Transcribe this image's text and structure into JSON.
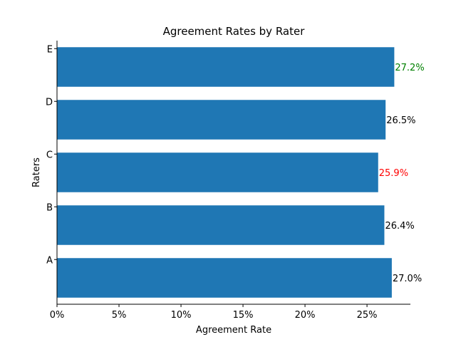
{
  "chart_data": {
    "type": "bar",
    "orientation": "horizontal",
    "title": "Agreement Rates by Rater",
    "xlabel": "Agreement Rate",
    "ylabel": "Raters",
    "categories": [
      "A",
      "B",
      "C",
      "D",
      "E"
    ],
    "values": [
      0.27,
      0.264,
      0.259,
      0.265,
      0.272
    ],
    "data_labels": [
      "27.0%",
      "26.4%",
      "25.9%",
      "26.5%",
      "27.2%"
    ],
    "label_colors": [
      "#000000",
      "#000000",
      "#ff0000",
      "#000000",
      "#008000"
    ],
    "bar_color": "#1f77b4",
    "xlim": [
      0,
      0.285
    ],
    "xticks": [
      0,
      0.05,
      0.1,
      0.15,
      0.2,
      0.25
    ],
    "xtick_labels": [
      "0%",
      "5%",
      "10%",
      "15%",
      "20%",
      "25%"
    ],
    "grid": false,
    "legend": "none"
  }
}
